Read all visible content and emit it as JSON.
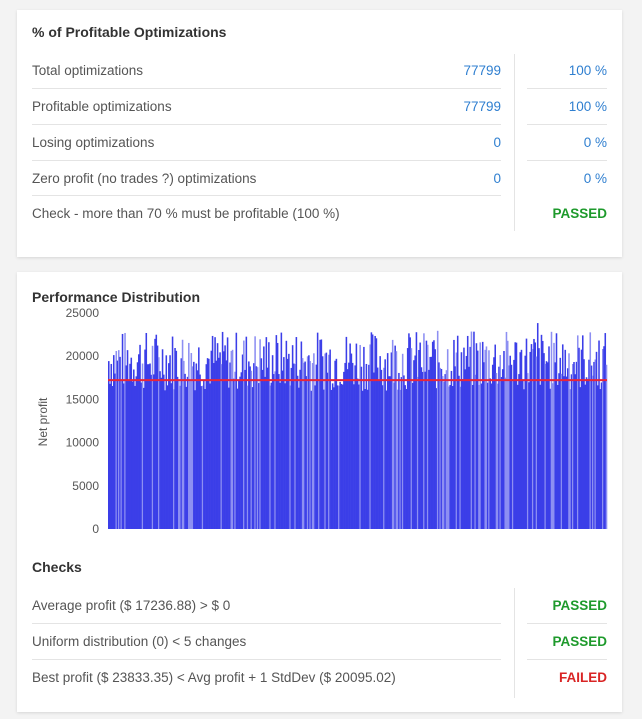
{
  "profitable": {
    "title": "% of Profitable Optimizations",
    "rows": [
      {
        "label": "Total optimizations",
        "value": "77799",
        "percent": "100 %"
      },
      {
        "label": "Profitable optimizations",
        "value": "77799",
        "percent": "100 %"
      },
      {
        "label": "Losing optimizations",
        "value": "0",
        "percent": "0 %"
      },
      {
        "label": "Zero profit (no trades ?) optimizations",
        "value": "0",
        "percent": "0 %"
      }
    ],
    "check": {
      "label": "Check - more than 70 % must be profitable (100 %)",
      "status": "PASSED"
    }
  },
  "performance": {
    "title": "Performance Distribution",
    "checks_title": "Checks",
    "checks": [
      {
        "label": "Average profit ($ 17236.88) > $ 0",
        "status": "PASSED"
      },
      {
        "label": "Uniform distribution (0) < 5 changes",
        "status": "PASSED"
      },
      {
        "label": "Best profit ($ 23833.35) < Avg profit + 1 StdDev ($ 20095.02)",
        "status": "FAILED"
      }
    ]
  },
  "colors": {
    "bar": "#3b3ee8",
    "bar_light": "#8d8ff2",
    "average_line": "#e8253a",
    "passed": "#1e9a2c",
    "failed": "#d92424",
    "value": "#2f7fd0"
  },
  "chart_data": {
    "type": "bar",
    "ylabel": "Net profit",
    "ylim": [
      0,
      25000
    ],
    "yticks": [
      "0",
      "5000",
      "10000",
      "15000",
      "20000",
      "25000"
    ],
    "average_line": 17236.88,
    "typical_range": [
      16000,
      23000
    ],
    "max_value": 23833.35,
    "n_optimizations": 77799
  }
}
